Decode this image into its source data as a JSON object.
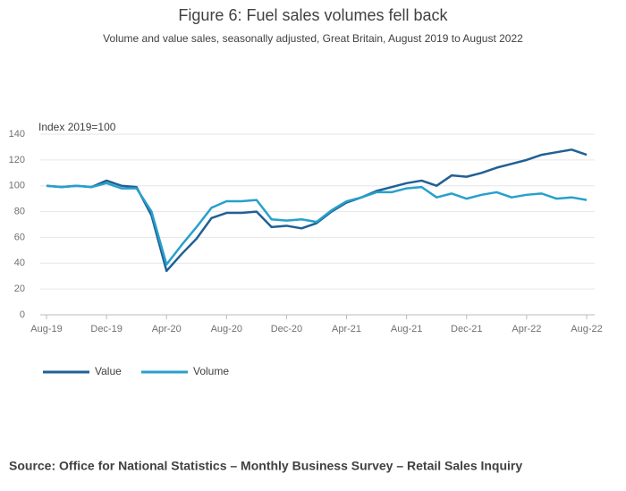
{
  "chart_data": {
    "type": "line",
    "title": "Figure 6: Fuel sales volumes fell back",
    "subtitle": "Volume and value sales, seasonally adjusted, Great Britain, August 2019 to August 2022",
    "y_label": "Index 2019=100",
    "source": "Source: Office for National Statistics – Monthly Business Survey – Retail Sales Inquiry",
    "categories": [
      "Aug-19",
      null,
      null,
      null,
      "Dec-19",
      null,
      null,
      null,
      "Apr-20",
      null,
      null,
      null,
      "Aug-20",
      null,
      null,
      null,
      "Dec-20",
      null,
      null,
      null,
      "Apr-21",
      null,
      null,
      null,
      "Aug-21",
      null,
      null,
      null,
      "Dec-21",
      null,
      null,
      null,
      "Apr-22",
      null,
      null,
      null,
      "Aug-22"
    ],
    "series": [
      {
        "name": "Value",
        "color": "#206095",
        "values": [
          100,
          99,
          100,
          99,
          104,
          100,
          99,
          77,
          34,
          47,
          59,
          75,
          79,
          79,
          80,
          68,
          69,
          67,
          71,
          80,
          87,
          91,
          96,
          99,
          102,
          104,
          100,
          108,
          107,
          110,
          114,
          117,
          120,
          124,
          126,
          128,
          124
        ]
      },
      {
        "name": "Volume",
        "color": "#27a0cc",
        "values": [
          100,
          99,
          100,
          99,
          102,
          98,
          98,
          80,
          39,
          54,
          68,
          83,
          88,
          88,
          89,
          74,
          73,
          74,
          72,
          81,
          88,
          91,
          95,
          95,
          98,
          99,
          91,
          94,
          90,
          93,
          95,
          91,
          93,
          94,
          90,
          91,
          89
        ]
      }
    ],
    "ylim": [
      0,
      140
    ],
    "yticks": [
      0,
      20,
      40,
      60,
      80,
      100,
      120,
      140
    ],
    "grid": true
  }
}
